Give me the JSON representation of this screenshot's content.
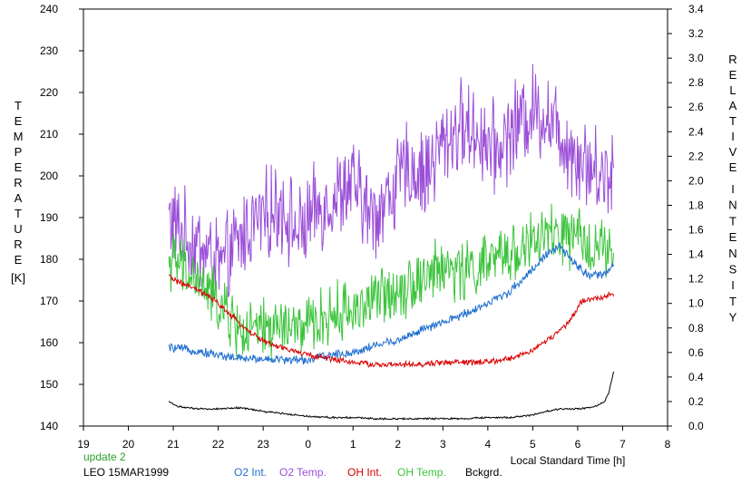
{
  "chart_data": {
    "type": "line",
    "xlabel": "Local Standard Time [h]",
    "y_left_label": "TEMPERATURE",
    "y_left_unit": "[K]",
    "y_right_label_1": "RELATIVE",
    "y_right_label_2": "INTENSITY",
    "xlim": [
      19,
      32
    ],
    "ylim_left": [
      140,
      240
    ],
    "ylim_right": [
      0.0,
      3.4
    ],
    "x_ticks": [
      19,
      20,
      21,
      22,
      23,
      24,
      25,
      26,
      27,
      28,
      29,
      30,
      31,
      32
    ],
    "x_tick_labels": [
      "19",
      "20",
      "21",
      "22",
      "23",
      "0",
      "1",
      "2",
      "3",
      "4",
      "5",
      "6",
      "7",
      "8"
    ],
    "y_left_ticks": [
      "140",
      "150",
      "160",
      "170",
      "180",
      "190",
      "200",
      "210",
      "220",
      "230",
      "240"
    ],
    "y_right_ticks": [
      "0.0",
      "0.2",
      "0.4",
      "0.6",
      "0.8",
      "1.0",
      "1.2",
      "1.4",
      "1.6",
      "1.8",
      "2.0",
      "2.2",
      "2.4",
      "2.6",
      "2.8",
      "3.0",
      "3.2",
      "3.4"
    ],
    "grid": false,
    "annotations": {
      "status": "update 2",
      "station_date": "LEO 15MAR1999"
    },
    "colors": {
      "o2_int": "#1f6fd0",
      "o2_temp": "#9b4fd8",
      "oh_int": "#d80000",
      "oh_temp": "#3cc43c",
      "bckgrd": "#000000",
      "status": "#2aa02a"
    },
    "series": [
      {
        "key": "o2_temp",
        "name": "O2 Temp.",
        "axis": "left",
        "x": [
          20.9,
          21.3,
          21.7,
          22.1,
          22.4,
          22.7,
          23.0,
          23.4,
          23.8,
          24.2,
          24.6,
          25.0,
          25.4,
          25.8,
          26.2,
          26.6,
          27.0,
          27.4,
          27.8,
          28.2,
          28.6,
          29.0,
          29.4,
          29.8,
          30.2,
          30.5,
          30.8
        ],
        "y": [
          190,
          185,
          182,
          178,
          183,
          188,
          190,
          193,
          186,
          192,
          195,
          198,
          190,
          195,
          202,
          200,
          208,
          212,
          210,
          206,
          212,
          216,
          214,
          207,
          203,
          200,
          202
        ],
        "noise": 9
      },
      {
        "key": "oh_temp",
        "name": "OH Temp.",
        "axis": "left",
        "x": [
          20.9,
          21.2,
          21.5,
          21.8,
          22.1,
          22.4,
          22.6,
          23.0,
          23.4,
          23.8,
          24.2,
          24.6,
          25.0,
          25.4,
          25.8,
          26.2,
          26.6,
          27.0,
          27.4,
          27.8,
          28.2,
          28.6,
          29.0,
          29.4,
          29.8,
          30.2,
          30.5,
          30.8
        ],
        "y": [
          180,
          178,
          175,
          172,
          168,
          164,
          162,
          163,
          164,
          163,
          165,
          167,
          168,
          170,
          172,
          174,
          176,
          178,
          177,
          178,
          180,
          182,
          184,
          186,
          185,
          184,
          183,
          180
        ],
        "noise": 6
      },
      {
        "key": "o2_int",
        "name": "O2 Int.",
        "axis": "right",
        "x": [
          20.9,
          21.4,
          22.0,
          22.5,
          23.0,
          23.5,
          24.0,
          24.5,
          25.0,
          25.5,
          26.0,
          26.5,
          27.0,
          27.5,
          28.0,
          28.5,
          29.0,
          29.3,
          29.6,
          30.0,
          30.3,
          30.6,
          30.8
        ],
        "y": [
          0.64,
          0.62,
          0.58,
          0.55,
          0.55,
          0.54,
          0.54,
          0.58,
          0.6,
          0.66,
          0.7,
          0.78,
          0.84,
          0.92,
          1.0,
          1.1,
          1.28,
          1.4,
          1.46,
          1.3,
          1.22,
          1.24,
          1.3
        ],
        "noise": 0.03
      },
      {
        "key": "oh_int",
        "name": "OH Int.",
        "axis": "right",
        "x": [
          20.9,
          21.2,
          21.6,
          22.0,
          22.4,
          22.8,
          23.2,
          23.6,
          24.0,
          24.5,
          25.0,
          25.5,
          26.0,
          26.5,
          27.0,
          27.5,
          28.0,
          28.5,
          29.0,
          29.4,
          29.8,
          30.1,
          30.4,
          30.8
        ],
        "y": [
          1.22,
          1.16,
          1.1,
          1.0,
          0.86,
          0.74,
          0.66,
          0.62,
          0.58,
          0.55,
          0.52,
          0.5,
          0.5,
          0.5,
          0.52,
          0.52,
          0.52,
          0.55,
          0.62,
          0.72,
          0.84,
          1.02,
          1.04,
          1.08
        ],
        "noise": 0.02
      },
      {
        "key": "bckgrd",
        "name": "Bckgrd.",
        "axis": "right",
        "x": [
          20.9,
          21.1,
          21.5,
          22.0,
          22.5,
          23.0,
          23.5,
          24.0,
          24.5,
          25.0,
          25.5,
          26.0,
          26.5,
          27.0,
          27.5,
          28.0,
          28.5,
          29.0,
          29.3,
          29.6,
          30.0,
          30.4,
          30.6,
          30.7,
          30.8
        ],
        "y": [
          0.2,
          0.16,
          0.14,
          0.14,
          0.15,
          0.12,
          0.1,
          0.08,
          0.07,
          0.07,
          0.06,
          0.06,
          0.06,
          0.06,
          0.06,
          0.07,
          0.07,
          0.09,
          0.12,
          0.14,
          0.14,
          0.16,
          0.2,
          0.28,
          0.45
        ],
        "noise": 0.006
      }
    ]
  }
}
